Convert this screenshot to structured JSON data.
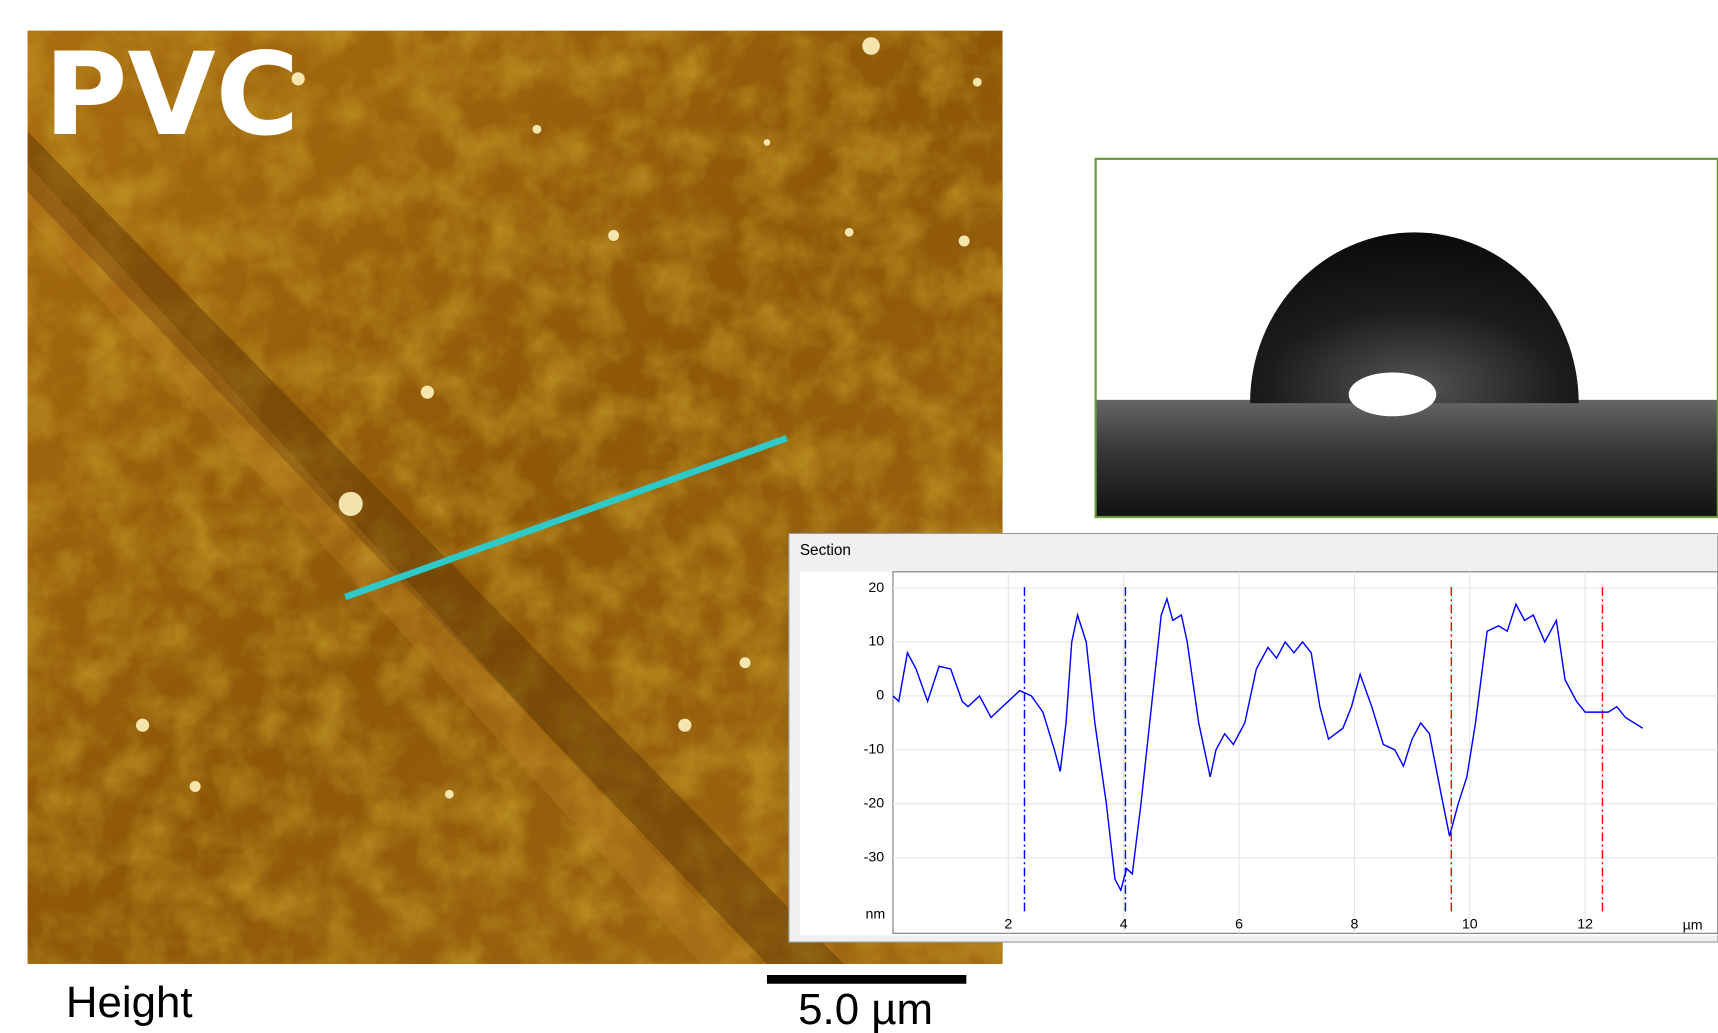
{
  "labels": {
    "title": "PVC",
    "channel": "Height",
    "scale_bar": "5.0 µm"
  },
  "chart_data": {
    "type": "line",
    "title": "Section",
    "y_unit": "nm",
    "x_unit": "µm",
    "x": [
      0,
      0.1,
      0.25,
      0.4,
      0.6,
      0.8,
      1.0,
      1.2,
      1.3,
      1.5,
      1.7,
      1.9,
      2.0,
      2.2,
      2.4,
      2.6,
      2.8,
      2.9,
      3.0,
      3.1,
      3.2,
      3.35,
      3.5,
      3.7,
      3.85,
      3.95,
      4.05,
      4.15,
      4.3,
      4.5,
      4.65,
      4.75,
      4.85,
      5.0,
      5.1,
      5.3,
      5.5,
      5.6,
      5.75,
      5.9,
      6.1,
      6.3,
      6.5,
      6.65,
      6.8,
      6.95,
      7.1,
      7.25,
      7.4,
      7.55,
      7.8,
      7.95,
      8.1,
      8.3,
      8.5,
      8.7,
      8.85,
      9.0,
      9.15,
      9.3,
      9.5,
      9.65,
      9.8,
      9.95,
      10.1,
      10.3,
      10.5,
      10.65,
      10.8,
      10.95,
      11.1,
      11.3,
      11.5,
      11.65,
      11.85,
      12.0,
      12.2,
      12.4,
      12.55,
      12.7,
      12.85,
      13.0
    ],
    "values": [
      0,
      -1,
      8,
      5,
      -1,
      5.5,
      5,
      -1,
      -2,
      0,
      -4,
      -2,
      -1,
      1,
      0,
      -3,
      -10,
      -14,
      -5,
      10,
      15,
      10,
      -5,
      -20,
      -34,
      -36,
      -32,
      -33,
      -20,
      0,
      15,
      18,
      14,
      15,
      10,
      -5,
      -15,
      -10,
      -7,
      -9,
      -5,
      5,
      9,
      7,
      10,
      8,
      10,
      8,
      -2,
      -8,
      -6,
      -2,
      4,
      -2,
      -9,
      -10,
      -13,
      -8,
      -5,
      -7,
      -18,
      -26,
      -20,
      -15,
      -5,
      12,
      13,
      12,
      17,
      14,
      15,
      10,
      14,
      3,
      -1,
      -3,
      -3,
      -3,
      -2,
      -4,
      -5,
      -6
    ],
    "color": "#0000ff",
    "cursors": [
      {
        "x": 2.28,
        "color": "#0000ff"
      },
      {
        "x": 4.03,
        "color": "#0000ff"
      },
      {
        "x": 9.68,
        "color": "#ff0000"
      },
      {
        "x": 12.3,
        "color": "#ff0000"
      }
    ],
    "xlim": [
      0,
      14.3
    ],
    "ylim": [
      -44,
      23
    ],
    "xticks": [
      2,
      4,
      6,
      8,
      10,
      12
    ],
    "yticks": [
      20,
      10,
      0,
      -10,
      -20,
      -30
    ],
    "grid": true
  }
}
